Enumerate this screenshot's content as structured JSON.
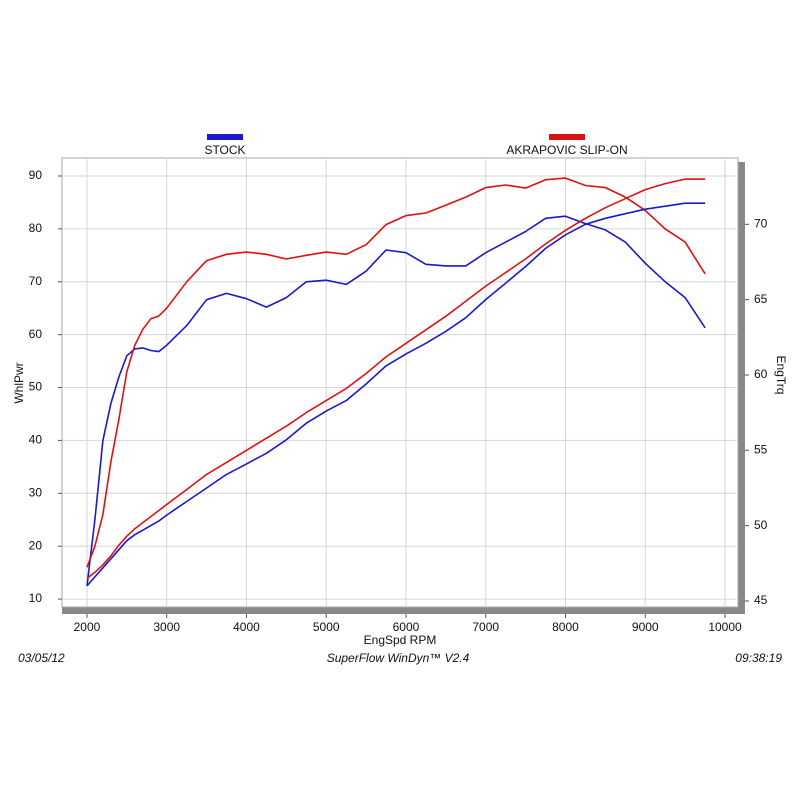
{
  "chart_data": {
    "type": "line",
    "x_label": "EngSpd  RPM",
    "y_label": "WhlPwr",
    "y2_label": "EngTrq",
    "date": "03/05/12",
    "software": "SuperFlow WinDyn™ V2.4",
    "time": "09:38:19",
    "x": [
      2000,
      2100,
      2200,
      2300,
      2400,
      2500,
      2600,
      2700,
      2800,
      2900,
      3000,
      3250,
      3500,
      3750,
      4000,
      4250,
      4500,
      4750,
      5000,
      5250,
      5500,
      5750,
      6000,
      6250,
      6500,
      6750,
      7000,
      7250,
      7500,
      7750,
      8000,
      8250,
      8500,
      8750,
      9000,
      9250,
      9500,
      9750
    ],
    "series": [
      {
        "name": "STOCK",
        "color": "#1a1acc",
        "values": [
          12.5,
          25,
          40,
          47,
          52,
          56,
          57.3,
          57.5,
          57,
          56.8,
          58,
          61.7,
          66.6,
          67.8,
          66.8,
          65.2,
          67,
          70,
          70.3,
          69.5,
          72,
          76,
          75.5,
          73.3,
          73,
          73,
          75.5,
          77.5,
          79.5,
          82,
          82.4,
          81,
          79.8,
          77.5,
          73.5,
          70,
          67,
          61.3
        ]
      },
      {
        "name": "AKRAPOVIC SLIP-ON",
        "color": "#dd1111",
        "values": [
          16,
          20,
          26,
          36,
          44,
          53,
          58,
          61,
          63,
          63.5,
          65,
          70,
          74,
          75.2,
          75.6,
          75.2,
          74.3,
          75,
          75.6,
          75.2,
          77,
          80.8,
          82.5,
          83,
          84.5,
          86,
          87.8,
          88.3,
          87.7,
          89.3,
          89.6,
          88.2,
          87.8,
          86,
          83.5,
          80,
          77.5,
          71.5
        ]
      },
      {
        "axis": "y2",
        "color": "#1a1acc",
        "values": [
          46,
          46.6,
          47.2,
          47.8,
          48.4,
          49,
          49.4,
          49.7,
          50,
          50.3,
          50.7,
          51.6,
          52.5,
          53.4,
          54.1,
          54.8,
          55.7,
          56.8,
          57.6,
          58.3,
          59.4,
          60.6,
          61.4,
          62.1,
          62.9,
          63.8,
          65,
          66.1,
          67.2,
          68.4,
          69.3,
          70,
          70.4,
          70.7,
          71,
          71.2,
          71.4,
          71.4
        ]
      },
      {
        "axis": "y2",
        "color": "#dd1111",
        "values": [
          46.5,
          46.9,
          47.4,
          48,
          48.7,
          49.3,
          49.8,
          50.2,
          50.6,
          51,
          51.4,
          52.4,
          53.4,
          54.2,
          55,
          55.8,
          56.6,
          57.5,
          58.3,
          59.1,
          60.1,
          61.2,
          62.1,
          63,
          63.9,
          64.9,
          65.9,
          66.8,
          67.7,
          68.7,
          69.6,
          70.4,
          71.1,
          71.7,
          72.3,
          72.7,
          73,
          73
        ]
      }
    ],
    "xlim": [
      1687,
      10163
    ],
    "xticks": [
      2000,
      3000,
      4000,
      5000,
      6000,
      7000,
      8000,
      9000,
      10000
    ],
    "ylim": [
      8.5,
      93.4
    ],
    "yticks": [
      10,
      20,
      30,
      40,
      50,
      60,
      70,
      80,
      90
    ],
    "y2lim": [
      44.6,
      74.4
    ],
    "y2ticks": [
      45,
      50,
      55,
      60,
      65,
      70
    ],
    "grid": true
  }
}
